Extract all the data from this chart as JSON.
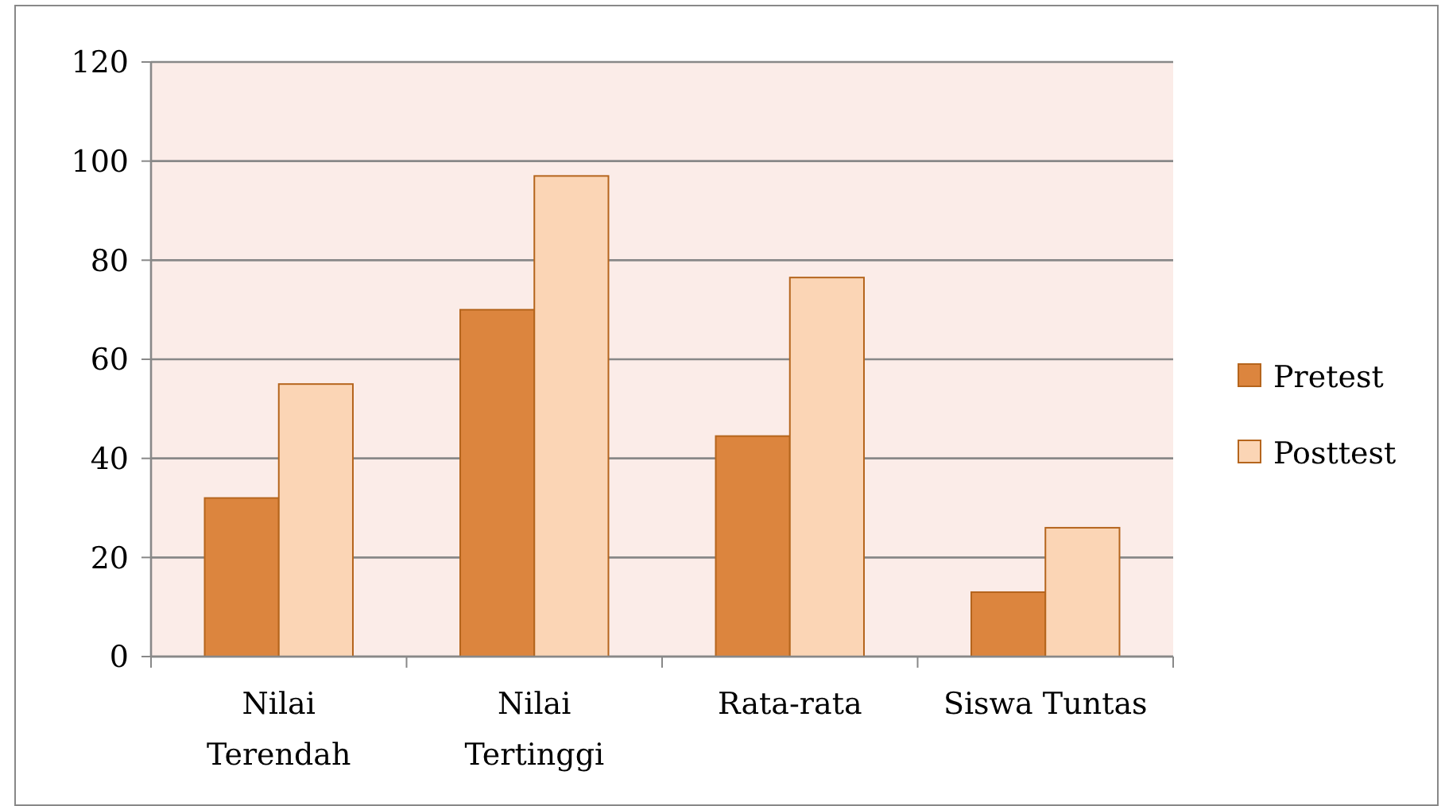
{
  "chart_data": {
    "type": "bar",
    "categories": [
      "Nilai Terendah",
      "Nilai Tertinggi",
      "Rata-rata",
      "Siswa Tuntas"
    ],
    "series": [
      {
        "name": "Pretest",
        "color": "#dc853e",
        "values": [
          32,
          70,
          44.5,
          13
        ]
      },
      {
        "name": "Posttest",
        "color": "#fbd5b5",
        "values": [
          55,
          97,
          76.5,
          26
        ]
      }
    ],
    "ylim": [
      0,
      120
    ],
    "yticks": [
      0,
      20,
      40,
      60,
      80,
      100,
      120
    ],
    "grid": "y",
    "legend": "right"
  }
}
